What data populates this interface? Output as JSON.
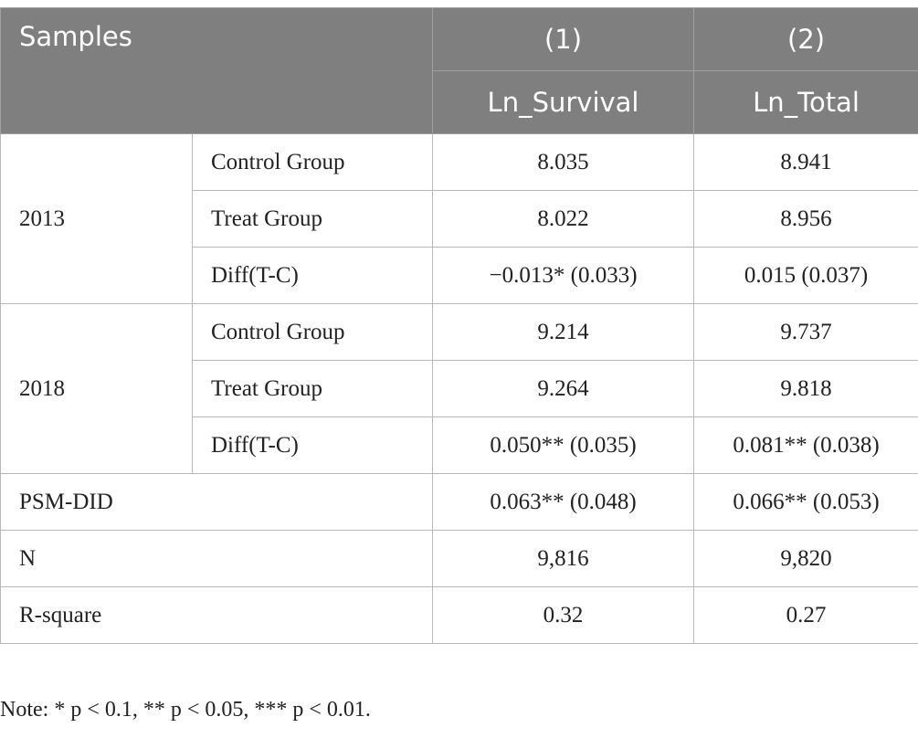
{
  "header": {
    "samples": "Samples",
    "columns": [
      {
        "number": "(1)",
        "label": "Ln_Survival"
      },
      {
        "number": "(2)",
        "label": "Ln_Total"
      }
    ]
  },
  "groups": [
    {
      "year": "2013",
      "rows": [
        {
          "label": "Control Group",
          "values": [
            "8.035",
            "8.941"
          ]
        },
        {
          "label": "Treat Group",
          "values": [
            "8.022",
            "8.956"
          ]
        },
        {
          "label": "Diff(T-C)",
          "values": [
            "−0.013* (0.033)",
            "0.015 (0.037)"
          ]
        }
      ]
    },
    {
      "year": "2018",
      "rows": [
        {
          "label": "Control Group",
          "values": [
            "9.214",
            "9.737"
          ]
        },
        {
          "label": "Treat Group",
          "values": [
            "9.264",
            "9.818"
          ]
        },
        {
          "label": "Diff(T-C)",
          "values": [
            "0.050** (0.035)",
            "0.081** (0.038)"
          ]
        }
      ]
    }
  ],
  "summary": [
    {
      "label": "PSM-DID",
      "values": [
        "0.063** (0.048)",
        "0.066** (0.053)"
      ]
    },
    {
      "label": "N",
      "values": [
        "9,816",
        "9,820"
      ]
    },
    {
      "label": "R-square",
      "values": [
        "0.32",
        "0.27"
      ]
    }
  ],
  "note": "Note: * p < 0.1, ** p < 0.05, *** p < 0.01."
}
